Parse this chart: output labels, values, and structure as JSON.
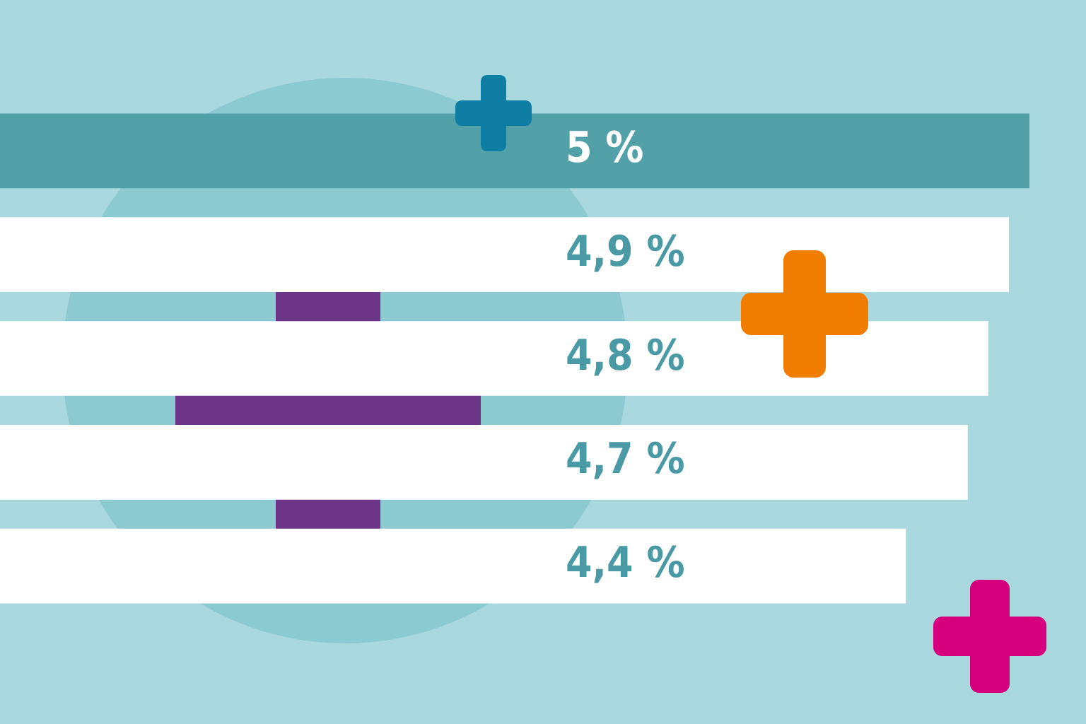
{
  "chart_data": {
    "type": "bar",
    "orientation": "horizontal",
    "categories": [
      null,
      null,
      null,
      null,
      null
    ],
    "values": [
      5,
      4.9,
      4.8,
      4.7,
      4.4
    ],
    "colors": [
      "#52a0a8",
      "#ffffff",
      "#ffffff",
      "#ffffff",
      "#ffffff"
    ],
    "value_labels": [
      "5 %",
      "4,9 %",
      "4,8 %",
      "4,7 %",
      "4,4 %"
    ],
    "legend": false
  }
}
